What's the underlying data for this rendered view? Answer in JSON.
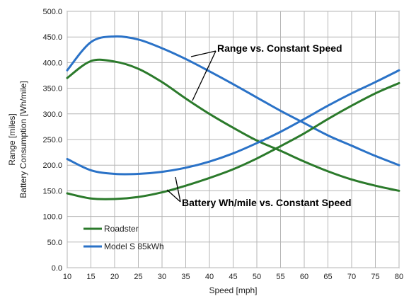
{
  "chart_data": {
    "type": "line",
    "xlabel": "Speed [mph]",
    "ylabel": [
      "Range [miles]",
      "Battery Consumption [Wh/mile]"
    ],
    "xlim": [
      10,
      80
    ],
    "ylim": [
      0,
      500
    ],
    "x_ticks": [
      "10",
      "15",
      "20",
      "25",
      "30",
      "35",
      "40",
      "45",
      "50",
      "55",
      "60",
      "65",
      "70",
      "75",
      "80"
    ],
    "y_ticks": [
      "0.0",
      "50.0",
      "100.0",
      "150.0",
      "200.0",
      "250.0",
      "300.0",
      "350.0",
      "400.0",
      "450.0",
      "500.0"
    ],
    "grid": true,
    "legend_position": "bottom-left",
    "x": [
      10,
      15,
      20,
      25,
      30,
      35,
      40,
      45,
      50,
      55,
      60,
      65,
      70,
      75,
      80
    ],
    "series": [
      {
        "name": "Roadster",
        "metric": "range",
        "color": "#2b7a2b",
        "values": [
          370,
          403,
          402,
          388,
          362,
          330,
          300,
          273,
          248,
          228,
          207,
          188,
          172,
          160,
          150
        ]
      },
      {
        "name": "Model S 85kWh",
        "metric": "range",
        "color": "#2a72c7",
        "values": [
          385,
          440,
          451,
          445,
          428,
          407,
          383,
          358,
          332,
          306,
          282,
          258,
          238,
          218,
          200
        ]
      },
      {
        "name": "Roadster",
        "metric": "wh_per_mile",
        "color": "#2b7a2b",
        "values": [
          145,
          135,
          134,
          138,
          147,
          160,
          175,
          192,
          213,
          237,
          262,
          290,
          316,
          340,
          360
        ]
      },
      {
        "name": "Model S 85kWh",
        "metric": "wh_per_mile",
        "color": "#2a72c7",
        "values": [
          212,
          190,
          183,
          183,
          187,
          195,
          207,
          223,
          243,
          265,
          290,
          316,
          340,
          362,
          385
        ]
      }
    ],
    "legend": [
      {
        "label": "Roadster",
        "color": "#2b7a2b"
      },
      {
        "label": "Model S 85kWh",
        "color": "#2a72c7"
      }
    ],
    "annotations": [
      {
        "text": "Range vs. Constant Speed",
        "pointers_to_x": [
          33,
          38
        ]
      },
      {
        "text": "Battery Wh/mile vs. Constant Speed",
        "pointers_to_x": [
          31,
          42
        ]
      }
    ]
  }
}
